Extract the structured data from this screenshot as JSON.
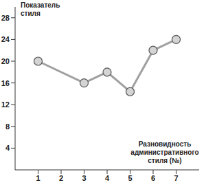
{
  "chart_data": {
    "type": "line",
    "x_label": "Разновидность административного стиля (№)",
    "y_label": "Показатель стиля",
    "x": [
      1,
      3,
      4,
      5,
      6,
      7
    ],
    "values": [
      20,
      16,
      18,
      14.4,
      22,
      24
    ],
    "color": "#a0a0a0",
    "marker": "circle",
    "xlim": [
      0,
      8
    ],
    "xticks": [
      1,
      2,
      3,
      4,
      5,
      6,
      7
    ],
    "ylim": [
      0,
      30
    ],
    "yticks": [
      4,
      8,
      12,
      16,
      20,
      24,
      28
    ],
    "grid": false
  }
}
